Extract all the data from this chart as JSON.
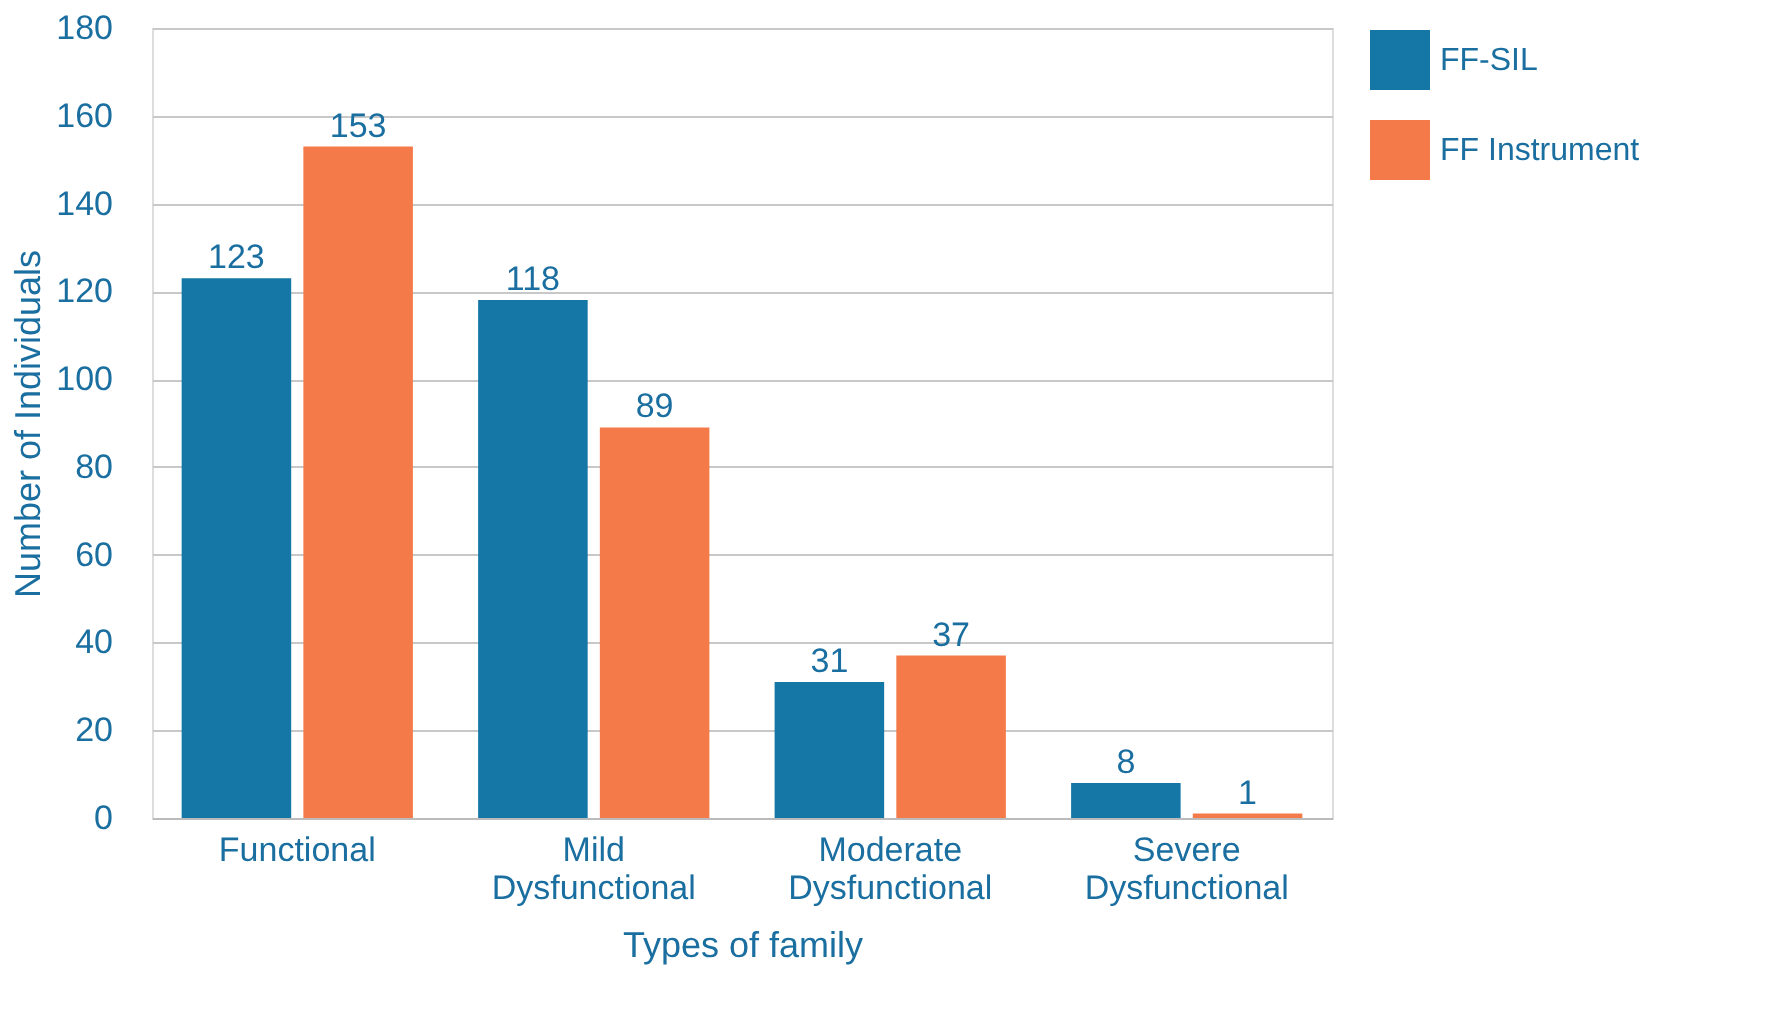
{
  "chart_data": {
    "type": "bar",
    "xlabel": "Types of family",
    "ylabel": "Number of Individuals",
    "categories": [
      "Functional",
      "Mild Dysfunctional",
      "Moderate Dysfunctional",
      "Severe Dysfunctional"
    ],
    "series": [
      {
        "name": "FF-SIL",
        "color": "#1577a6",
        "values": [
          123,
          118,
          31,
          8
        ]
      },
      {
        "name": "FF Instrument",
        "color": "#f47a4a",
        "values": [
          153,
          89,
          37,
          1
        ]
      }
    ],
    "ylim": [
      0,
      180
    ],
    "yticks": [
      0,
      20,
      40,
      60,
      80,
      100,
      120,
      140,
      160,
      180
    ],
    "grid": "y",
    "legend": "right",
    "data_labels": true
  }
}
